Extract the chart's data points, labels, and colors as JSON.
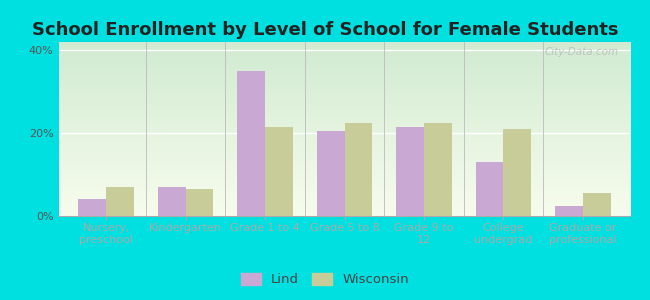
{
  "title": "School Enrollment by Level of School for Female Students",
  "categories": [
    "Nursery,\npreschool",
    "Kindergarten",
    "Grade 1 to 4",
    "Grade 5 to 8",
    "Grade 9 to\n12",
    "College\nundergrad",
    "Graduate or\nprofessional"
  ],
  "lind_values": [
    4.0,
    7.0,
    35.0,
    20.5,
    21.5,
    13.0,
    2.5
  ],
  "wisconsin_values": [
    7.0,
    6.5,
    21.5,
    22.5,
    22.5,
    21.0,
    5.5
  ],
  "lind_color": "#c9a8d4",
  "wisconsin_color": "#c8cc99",
  "ylim": [
    0,
    42
  ],
  "yticks": [
    0,
    20,
    40
  ],
  "ytick_labels": [
    "0%",
    "20%",
    "40%"
  ],
  "background_color": "#00e0e0",
  "title_fontsize": 13,
  "tick_fontsize": 8.0,
  "legend_fontsize": 9.5,
  "bar_width": 0.35,
  "watermark_text": "City-Data.com"
}
